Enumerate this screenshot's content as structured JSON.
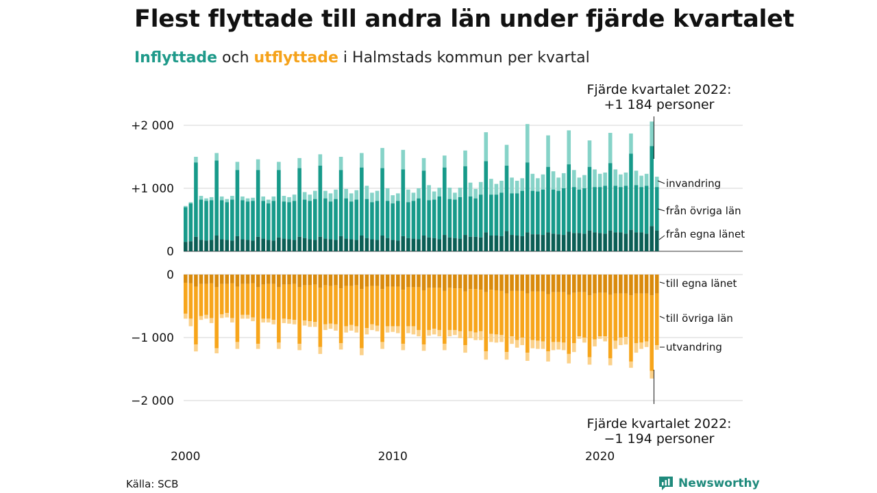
{
  "title": "Flest flyttade till andra län under fjärde kvartalet",
  "subtitle": {
    "in_word": "Inflyttade",
    "middle": " och ",
    "out_word": "utflyttade",
    "rest": " i Halmstads kommun per kvartal"
  },
  "callout_top": {
    "line1": "Fjärde kvartalet 2022:",
    "line2": "+1 184 personer"
  },
  "callout_bottom": {
    "line1": "Fjärde kvartalet 2022:",
    "line2": "−1 194 personer"
  },
  "source": "Källa: SCB",
  "logo_text": "Newsworthy",
  "colors": {
    "in_own": "#0b5e55",
    "in_other": "#179a8a",
    "in_immigration": "#86d3c8",
    "out_own": "#d98a0c",
    "out_other": "#f7a51b",
    "out_emigration": "#fbd18a",
    "accent_in": "#1f9a8a",
    "accent_out": "#f5a21a"
  },
  "chart_data": {
    "type": "bar",
    "x_label": "",
    "y_label": "",
    "x_ticks": [
      {
        "label": "2000",
        "year": 2000
      },
      {
        "label": "2010",
        "year": 2010
      },
      {
        "label": "2020",
        "year": 2020
      }
    ],
    "y_ticks_in": [
      {
        "label": "0",
        "value": 0
      },
      {
        "label": "+1 000",
        "value": 1000
      },
      {
        "label": "+2 000",
        "value": 2000
      }
    ],
    "y_ticks_out": [
      {
        "label": "0",
        "value": 0
      },
      {
        "label": "−1 000",
        "value": -1000
      },
      {
        "label": "−2 000",
        "value": -2000
      }
    ],
    "ylim_in": [
      0,
      2000
    ],
    "ylim_out": [
      -2000,
      0
    ],
    "legend_in": [
      "invandring",
      "från övriga län",
      "från egna länet"
    ],
    "legend_out": [
      "till egna länet",
      "till övriga län",
      "utvandring"
    ],
    "periods": [
      "2000 Q1",
      "2000 Q2",
      "2000 Q3",
      "2000 Q4",
      "2001 Q1",
      "2001 Q2",
      "2001 Q3",
      "2001 Q4",
      "2002 Q1",
      "2002 Q2",
      "2002 Q3",
      "2002 Q4",
      "2003 Q1",
      "2003 Q2",
      "2003 Q3",
      "2003 Q4",
      "2004 Q1",
      "2004 Q2",
      "2004 Q3",
      "2004 Q4",
      "2005 Q1",
      "2005 Q2",
      "2005 Q3",
      "2005 Q4",
      "2006 Q1",
      "2006 Q2",
      "2006 Q3",
      "2006 Q4",
      "2007 Q1",
      "2007 Q2",
      "2007 Q3",
      "2007 Q4",
      "2008 Q1",
      "2008 Q2",
      "2008 Q3",
      "2008 Q4",
      "2009 Q1",
      "2009 Q2",
      "2009 Q3",
      "2009 Q4",
      "2010 Q1",
      "2010 Q2",
      "2010 Q3",
      "2010 Q4",
      "2011 Q1",
      "2011 Q2",
      "2011 Q3",
      "2011 Q4",
      "2012 Q1",
      "2012 Q2",
      "2012 Q3",
      "2012 Q4",
      "2013 Q1",
      "2013 Q2",
      "2013 Q3",
      "2013 Q4",
      "2014 Q1",
      "2014 Q2",
      "2014 Q3",
      "2014 Q4",
      "2015 Q1",
      "2015 Q2",
      "2015 Q3",
      "2015 Q4",
      "2016 Q1",
      "2016 Q2",
      "2016 Q3",
      "2016 Q4",
      "2017 Q1",
      "2017 Q2",
      "2017 Q3",
      "2017 Q4",
      "2018 Q1",
      "2018 Q2",
      "2018 Q3",
      "2018 Q4",
      "2019 Q1",
      "2019 Q2",
      "2019 Q3",
      "2019 Q4",
      "2020 Q1",
      "2020 Q2",
      "2020 Q3",
      "2020 Q4",
      "2021 Q1",
      "2021 Q2",
      "2021 Q3",
      "2021 Q4",
      "2022 Q1",
      "2022 Q2",
      "2022 Q3",
      "2022 Q4"
    ],
    "in_total": [
      720,
      780,
      1500,
      880,
      840,
      860,
      1560,
      870,
      830,
      880,
      1420,
      870,
      840,
      850,
      1460,
      870,
      820,
      870,
      1420,
      880,
      860,
      900,
      1480,
      940,
      900,
      960,
      1540,
      960,
      920,
      980,
      1500,
      990,
      920,
      970,
      1560,
      1040,
      930,
      960,
      1640,
      1000,
      890,
      920,
      1610,
      980,
      930,
      1000,
      1480,
      1050,
      950,
      1010,
      1520,
      1010,
      930,
      1010,
      1600,
      1090,
      990,
      1100,
      1890,
      1150,
      1070,
      1120,
      1690,
      1170,
      1120,
      1160,
      2020,
      1230,
      1160,
      1220,
      1840,
      1270,
      1170,
      1240,
      1920,
      1290,
      1170,
      1210,
      1760,
      1300,
      1230,
      1250,
      1880,
      1300,
      1220,
      1250,
      1870,
      1280,
      1200,
      1230,
      2060,
      1184
    ],
    "in_other_top": [
      700,
      760,
      1410,
      820,
      800,
      810,
      1440,
      810,
      780,
      820,
      1290,
      810,
      790,
      800,
      1290,
      800,
      760,
      800,
      1290,
      790,
      780,
      800,
      1320,
      820,
      800,
      830,
      1360,
      840,
      790,
      830,
      1290,
      840,
      790,
      820,
      1330,
      830,
      780,
      800,
      1320,
      800,
      760,
      800,
      1300,
      780,
      800,
      840,
      1280,
      810,
      820,
      870,
      1330,
      830,
      820,
      860,
      1350,
      870,
      840,
      900,
      1430,
      900,
      900,
      930,
      1360,
      920,
      920,
      960,
      1410,
      960,
      950,
      980,
      1340,
      980,
      960,
      1000,
      1380,
      1020,
      980,
      1000,
      1340,
      1020,
      1020,
      1040,
      1400,
      1040,
      1020,
      1040,
      1550,
      1050,
      1020,
      1040,
      1670,
      1020
    ],
    "in_own": [
      150,
      160,
      230,
      180,
      170,
      180,
      250,
      190,
      180,
      170,
      240,
      190,
      180,
      170,
      230,
      200,
      180,
      170,
      220,
      200,
      190,
      180,
      230,
      210,
      190,
      180,
      230,
      200,
      190,
      180,
      240,
      200,
      190,
      180,
      250,
      210,
      190,
      180,
      250,
      210,
      180,
      170,
      240,
      210,
      200,
      190,
      250,
      220,
      210,
      190,
      260,
      220,
      210,
      200,
      260,
      230,
      230,
      220,
      300,
      250,
      250,
      240,
      320,
      260,
      250,
      240,
      300,
      270,
      270,
      260,
      300,
      280,
      270,
      260,
      310,
      290,
      290,
      280,
      330,
      300,
      290,
      280,
      330,
      300,
      300,
      280,
      340,
      300,
      300,
      280,
      400,
      330
    ],
    "out_total": [
      700,
      820,
      1220,
      720,
      700,
      770,
      1250,
      690,
      680,
      760,
      1180,
      700,
      700,
      740,
      1180,
      760,
      760,
      790,
      1180,
      770,
      780,
      790,
      1200,
      810,
      830,
      830,
      1260,
      880,
      860,
      890,
      1190,
      920,
      890,
      920,
      1280,
      950,
      880,
      900,
      1180,
      920,
      910,
      930,
      1200,
      930,
      950,
      980,
      1210,
      970,
      950,
      980,
      1200,
      980,
      960,
      1010,
      1240,
      1010,
      1040,
      1040,
      1350,
      1070,
      1080,
      1070,
      1350,
      1100,
      1160,
      1120,
      1370,
      1170,
      1180,
      1180,
      1380,
      1200,
      1190,
      1200,
      1410,
      1230,
      1020,
      1080,
      1430,
      1140,
      1020,
      1060,
      1440,
      1180,
      1120,
      1110,
      1480,
      1240,
      1180,
      1150,
      1650,
      1194
    ],
    "out_other_bottom": [
      620,
      700,
      1110,
      660,
      640,
      690,
      1170,
      630,
      610,
      690,
      1070,
      640,
      640,
      680,
      1100,
      700,
      700,
      720,
      1080,
      700,
      710,
      720,
      1100,
      730,
      740,
      750,
      1150,
      790,
      780,
      790,
      1090,
      820,
      800,
      820,
      1170,
      850,
      790,
      810,
      1070,
      820,
      820,
      820,
      1100,
      820,
      820,
      880,
      1110,
      880,
      860,
      880,
      1100,
      880,
      880,
      900,
      1120,
      900,
      920,
      900,
      1220,
      940,
      950,
      960,
      1230,
      980,
      1040,
      1000,
      1240,
      1040,
      1050,
      1060,
      1220,
      1070,
      1070,
      1080,
      1260,
      1090,
      980,
      1000,
      1310,
      1030,
      980,
      980,
      1330,
      1050,
      1000,
      990,
      1380,
      1090,
      1080,
      1060,
      1530,
      1120
    ],
    "out_own": [
      130,
      140,
      190,
      150,
      150,
      140,
      200,
      150,
      150,
      140,
      190,
      150,
      150,
      140,
      200,
      160,
      150,
      150,
      200,
      160,
      160,
      150,
      200,
      170,
      170,
      160,
      210,
      170,
      180,
      170,
      220,
      180,
      180,
      170,
      230,
      190,
      180,
      180,
      230,
      190,
      190,
      190,
      240,
      200,
      200,
      200,
      250,
      210,
      210,
      210,
      260,
      210,
      220,
      220,
      270,
      230,
      230,
      240,
      280,
      240,
      250,
      260,
      300,
      260,
      260,
      260,
      300,
      270,
      270,
      270,
      310,
      280,
      280,
      280,
      320,
      290,
      280,
      280,
      330,
      300,
      290,
      290,
      320,
      300,
      300,
      300,
      330,
      300,
      300,
      300,
      330,
      300
    ]
  }
}
